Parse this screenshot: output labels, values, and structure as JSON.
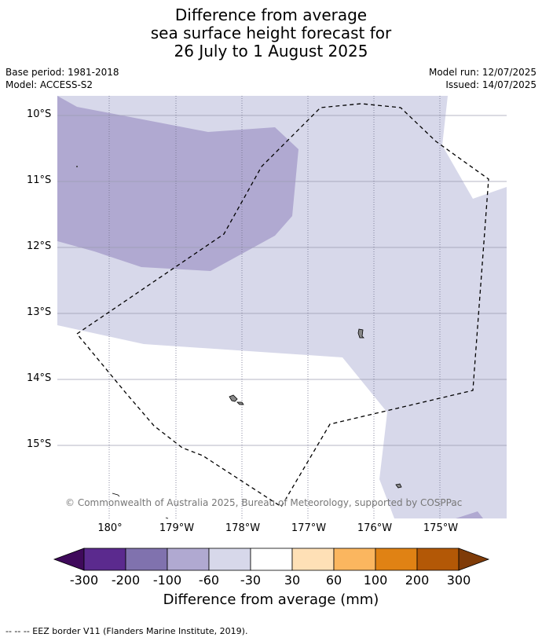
{
  "title": {
    "line1": "Difference from average",
    "line2": "sea surface height forecast for",
    "line3": "26 July to 1 August 2025"
  },
  "meta": {
    "base_period": "Base period: 1981-2018",
    "model": "Model: ACCESS-S2",
    "model_run": "Model run: 12/07/2025",
    "issued": "Issued: 14/07/2025"
  },
  "map": {
    "lat_labels": [
      "10°S",
      "11°S",
      "12°S",
      "13°S",
      "14°S",
      "15°S"
    ],
    "lon_labels": [
      "180°",
      "179°W",
      "178°W",
      "177°W",
      "176°W",
      "175°W"
    ],
    "copyright": "© Commonwealth of Australia 2025, Bureau of Meteorology, supported by COSPPac",
    "colors": {
      "light_lavender": "#d7d8ea",
      "medium_lavender": "#b0a9d1",
      "gridline": "#9b9bb0"
    }
  },
  "colorbar": {
    "ticks": [
      "-300",
      "-200",
      "-100",
      "-60",
      "-30",
      "30",
      "60",
      "100",
      "200",
      "300"
    ],
    "colors": [
      "#3f0a5b",
      "#5b2a8e",
      "#8072ae",
      "#b0a9d1",
      "#d7d8ea",
      "#ffffff",
      "#fee0b6",
      "#fbb65f",
      "#e08214",
      "#b35806",
      "#7f3b08"
    ],
    "label": "Difference from average (mm)"
  },
  "footer": {
    "legend": "--  --  -- EEZ border V11 (Flanders Marine Institute, 2019)."
  }
}
